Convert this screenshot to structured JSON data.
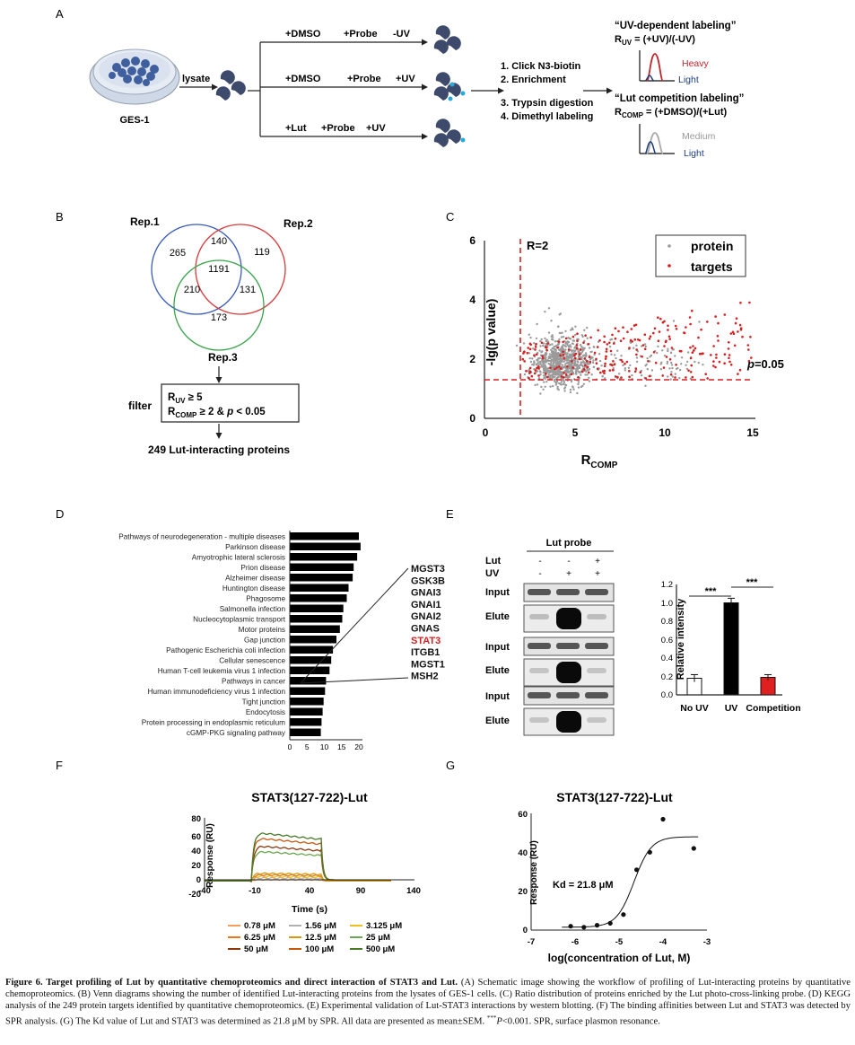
{
  "panels": {
    "A": "A",
    "B": "B",
    "C": "C",
    "D": "D",
    "E": "E",
    "F": "F",
    "G": "G"
  },
  "panelA": {
    "cell_line": "GES-1",
    "lysate": "lysate",
    "conditions": [
      {
        "reagent": "+DMSO",
        "probe": "+Probe",
        "uv": "-UV"
      },
      {
        "reagent": "+DMSO",
        "probe": "+Probe",
        "uv": "+UV"
      },
      {
        "reagent": "+Lut",
        "probe": "+Probe",
        "uv": "+UV"
      }
    ],
    "steps": [
      "1. Click N3-biotin",
      "2. Enrichment",
      "3. Trypsin digestion",
      "4. Dimethyl labeling"
    ],
    "uv_title": "“UV-dependent labeling”",
    "uv_formula_prefix": "R",
    "uv_formula_sub": "UV",
    "uv_formula_rest": " = (+UV)/(-UV)",
    "heavy": "Heavy",
    "light": "Light",
    "comp_title": "“Lut competition labeling”",
    "comp_formula_prefix": "R",
    "comp_formula_sub": "COMP",
    "comp_formula_rest": " = (+DMSO)/(+Lut)",
    "medium": "Medium",
    "light2": "Light",
    "colors": {
      "heavy": "#c0272d",
      "light": "#1f3f7a",
      "medium": "#aaaaaa"
    }
  },
  "panelB": {
    "rep1": "Rep.1",
    "rep2": "Rep.2",
    "rep3": "Rep.3",
    "counts": {
      "only1": "265",
      "only2": "119",
      "only3": "173",
      "r12": "140",
      "r13": "210",
      "r23": "131",
      "all": "1191"
    },
    "filter_label": "filter",
    "filter_line1_prefix": "R",
    "filter_line1_sub": "UV",
    "filter_line1_rest": " ≥ 5",
    "filter_line2_prefix": "R",
    "filter_line2_sub": "COMP",
    "filter_line2_mid": " ≥ 2 & ",
    "filter_line2_p": "p",
    "filter_line2_rest": " < 0.05",
    "result": "249 Lut-interacting proteins",
    "colors": {
      "rep1": "#3a5bb8",
      "rep2": "#d63a3a",
      "rep3": "#3aa34a"
    }
  },
  "chart_data": [
    {
      "panel": "C",
      "type": "scatter",
      "xlabel_prefix": "R",
      "xlabel_sub": "COMP",
      "ylabel": "-lg(p value)",
      "xlim": [
        0,
        15
      ],
      "ylim": [
        0,
        6
      ],
      "xticks": [
        "0",
        "5",
        "10",
        "15"
      ],
      "yticks": [
        "0",
        "2",
        "4",
        "6"
      ],
      "series": [
        {
          "name": "protein",
          "color": "#9a9a9a"
        },
        {
          "name": "targets",
          "color": "#d62020"
        }
      ],
      "vline": {
        "x": 2,
        "label": "R=2"
      },
      "hline": {
        "y": 1.3,
        "label_p": "p",
        "label_rest": "=0.05"
      }
    },
    {
      "panel": "D",
      "type": "bar",
      "orientation": "horizontal",
      "categories": [
        "Pathways of neurodegeneration - multiple diseases",
        "Parkinson disease",
        "Amyotrophic lateral sclerosis",
        "Prion disease",
        "Alzheimer disease",
        "Huntington disease",
        "Phagosome",
        "Salmonella infection",
        "Nucleocytoplasmic transport",
        "Motor proteins",
        "Gap junction",
        "Pathogenic Escherichia coli infection",
        "Cellular senescence",
        "Human T-cell leukemia virus 1 infection",
        "Pathways in cancer",
        "Human immunodeficiency virus 1 infection",
        "Tight junction",
        "Endocytosis",
        "Protein processing in endoplasmic reticulum",
        "cGMP-PKG signaling pathway"
      ],
      "values": [
        20,
        20.5,
        19.5,
        18.5,
        18.2,
        17,
        16.5,
        15.5,
        15.2,
        14.5,
        13.5,
        12.5,
        12,
        11.5,
        10.5,
        10.2,
        9.8,
        9.5,
        9.2,
        9
      ],
      "xticks": [
        "0",
        "5",
        "10",
        "15",
        "20"
      ],
      "xlim": [
        0,
        20
      ],
      "genes": [
        "MGST3",
        "GSK3B",
        "GNAI3",
        "GNAI1",
        "GNAI2",
        "GNAS",
        "STAT3",
        "ITGB1",
        "MGST1",
        "MSH2"
      ],
      "highlight_gene": "STAT3",
      "highlight_color": "#d62020"
    },
    {
      "panel": "E",
      "type": "bar",
      "categories": [
        "No UV",
        "UV",
        "Competition"
      ],
      "values": [
        0.18,
        1.0,
        0.19
      ],
      "errors": [
        0.04,
        0.05,
        0.03
      ],
      "colors": [
        "#ffffff",
        "#000000",
        "#e02020"
      ],
      "ylabel": "Relative intensity",
      "ylim": [
        0,
        1.2
      ],
      "yticks": [
        "0.0",
        "0.2",
        "0.4",
        "0.6",
        "0.8",
        "1.0",
        "1.2"
      ],
      "significance": [
        "***",
        "***"
      ]
    },
    {
      "panel": "F",
      "type": "line",
      "title": "STAT3(127-722)-Lut",
      "xlabel": "Time (s)",
      "ylabel": "Response (RU)",
      "xlim": [
        -40,
        140
      ],
      "ylim": [
        -20,
        80
      ],
      "xticks": [
        "-40",
        "-10",
        "40",
        "90",
        "140"
      ],
      "yticks": [
        "-20",
        "0",
        "20",
        "40",
        "60",
        "80"
      ],
      "series": [
        {
          "name": "0.78 μM",
          "color": "#f4a05a",
          "level": 2
        },
        {
          "name": "1.56 μM",
          "color": "#b0b0b0",
          "level": 4
        },
        {
          "name": "3.125 μM",
          "color": "#f0c020",
          "level": 6
        },
        {
          "name": "6.25 μM",
          "color": "#e87818",
          "level": 8
        },
        {
          "name": "12.5 μM",
          "color": "#d89810",
          "level": 10
        },
        {
          "name": "25 μM",
          "color": "#6aa84f",
          "level": 38
        },
        {
          "name": "50 μM",
          "color": "#8b3a0f",
          "level": 45
        },
        {
          "name": "100 μM",
          "color": "#c85a10",
          "level": 55
        },
        {
          "name": "500 μM",
          "color": "#4a7a2a",
          "level": 62
        }
      ]
    },
    {
      "panel": "G",
      "type": "scatter",
      "title": "STAT3(127-722)-Lut",
      "xlabel": "log(concentration of Lut, M)",
      "ylabel": "Response (RU)",
      "xlim": [
        -7,
        -3
      ],
      "ylim": [
        0,
        60
      ],
      "xticks": [
        "-7",
        "-6",
        "-5",
        "-4",
        "-3"
      ],
      "yticks": [
        "0",
        "20",
        "40",
        "60"
      ],
      "x": [
        -6.1,
        -5.8,
        -5.5,
        -5.2,
        -4.9,
        -4.6,
        -4.3,
        -4.0,
        -3.3
      ],
      "y": [
        2,
        1.5,
        2.5,
        3.5,
        8,
        31,
        40,
        57,
        42
      ],
      "fit": {
        "bottom": 1.5,
        "top": 48,
        "logKd": -4.66,
        "hill": 2.2
      },
      "annotation": "Kd = 21.8 μM"
    }
  ],
  "panelE": {
    "probe_header": "Lut probe",
    "row_lut": "Lut",
    "row_uv": "UV",
    "lut_marks": [
      "-",
      "-",
      "+"
    ],
    "uv_marks": [
      "-",
      "+",
      "+"
    ],
    "blot_labels": [
      "Input",
      "Elute",
      "Input",
      "Elute",
      "Input",
      "Elute"
    ]
  },
  "caption": {
    "fig": "Figure 6. Target profiling of Lut by quantitative chemoproteomics and direct interaction of STAT3 and Lut.",
    "text1": " (A) Schematic image showing the workflow of profiling of Lut-interacting proteins by quantitative chemoproteomics. (B) Venn diagrams showing the number of identified Lut-interacting proteins from the lysates of GES-1 cells. (C) Ratio distribution of proteins enriched by the Lut photo-cross-linking probe. (D) KEGG analysis of the 249 protein targets identified by quantitative chemoproteomics. (E) Experimental validation of Lut-STAT3 interactions by western blotting. (F) The binding affinities between Lut and STAT3 was detected by SPR analysis. (G) The Kd value of Lut and STAT3 was determined as 21.8 μM by SPR. All data are presented as mean±SEM. ",
    "stars": "***",
    "p_italic": "P",
    "text2": "<0.001. SPR, surface plasmon resonance."
  }
}
